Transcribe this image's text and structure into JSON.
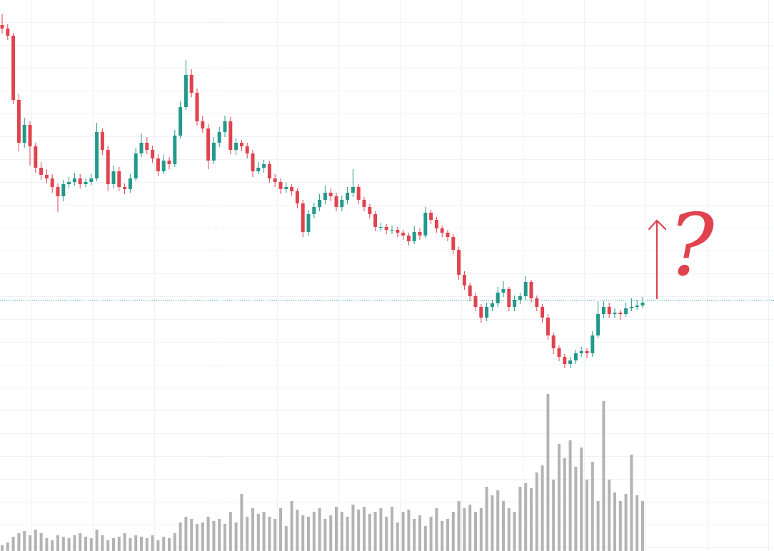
{
  "chart_data": {
    "type": "candlestick",
    "annotation": "?",
    "annotation_color": "#e0434f",
    "up_color": "#22998a",
    "down_color": "#e0434f",
    "volume_color": "#b3b3b3",
    "price_line": 351,
    "price_line_color": "#22998a",
    "ylim": [
      0,
      772
    ],
    "volume_ylim": [
      0,
      240
    ],
    "open": [
      737,
      732,
      722,
      632,
      572,
      597,
      567,
      537,
      527,
      522,
      510,
      497,
      514,
      517,
      522,
      514,
      517,
      522,
      587,
      562,
      514,
      532,
      510,
      507,
      522,
      557,
      572,
      562,
      550,
      532,
      547,
      542,
      582,
      622,
      667,
      642,
      602,
      592,
      547,
      572,
      587,
      602,
      562,
      572,
      567,
      557,
      532,
      537,
      542,
      522,
      517,
      507,
      510,
      504,
      487,
      447,
      472,
      482,
      492,
      502,
      497,
      482,
      492,
      502,
      510,
      492,
      482,
      472,
      454,
      454,
      450,
      450,
      446,
      442,
      434,
      447,
      442,
      474,
      464,
      452,
      446,
      440,
      422,
      387,
      372,
      357,
      342,
      327,
      342,
      347,
      362,
      367,
      342,
      352,
      357,
      377,
      354,
      342,
      327,
      302,
      284,
      272,
      262,
      267,
      277,
      280,
      277,
      302,
      332,
      342,
      332,
      334,
      332,
      340,
      342,
      344
    ],
    "high": [
      752,
      738,
      726,
      640,
      607,
      602,
      572,
      545,
      535,
      528,
      515,
      520,
      524,
      530,
      528,
      522,
      528,
      600,
      592,
      568,
      540,
      538,
      515,
      528,
      565,
      585,
      580,
      568,
      556,
      555,
      552,
      590,
      630,
      688,
      675,
      648,
      610,
      598,
      580,
      594,
      610,
      608,
      578,
      576,
      572,
      562,
      545,
      548,
      546,
      528,
      522,
      516,
      514,
      508,
      492,
      478,
      488,
      500,
      512,
      508,
      502,
      498,
      510,
      535,
      514,
      496,
      486,
      476,
      460,
      458,
      456,
      454,
      450,
      446,
      455,
      452,
      482,
      478,
      468,
      456,
      450,
      444,
      426,
      392,
      376,
      362,
      346,
      348,
      352,
      370,
      378,
      370,
      358,
      362,
      385,
      380,
      358,
      346,
      332,
      306,
      288,
      276,
      272,
      282,
      286,
      284,
      308,
      350,
      350,
      348,
      340,
      338,
      348,
      354,
      352,
      356
    ],
    "low": [
      725,
      716,
      626,
      560,
      565,
      540,
      530,
      520,
      515,
      502,
      475,
      490,
      508,
      512,
      508,
      510,
      512,
      518,
      555,
      505,
      508,
      504,
      500,
      502,
      518,
      552,
      556,
      544,
      525,
      528,
      535,
      538,
      578,
      618,
      636,
      596,
      586,
      535,
      542,
      566,
      580,
      556,
      555,
      560,
      550,
      524,
      528,
      530,
      516,
      510,
      500,
      502,
      498,
      480,
      440,
      442,
      466,
      476,
      486,
      490,
      476,
      476,
      486,
      496,
      486,
      476,
      466,
      448,
      448,
      444,
      444,
      440,
      436,
      428,
      430,
      436,
      438,
      458,
      446,
      440,
      434,
      416,
      380,
      366,
      350,
      336,
      320,
      322,
      336,
      342,
      356,
      336,
      336,
      346,
      352,
      348,
      336,
      320,
      296,
      276,
      266,
      256,
      256,
      262,
      272,
      270,
      272,
      298,
      326,
      326,
      326,
      324,
      328,
      336,
      338,
      340
    ],
    "close": [
      732,
      722,
      632,
      572,
      597,
      567,
      537,
      527,
      522,
      510,
      497,
      514,
      517,
      522,
      514,
      517,
      522,
      587,
      562,
      514,
      532,
      510,
      507,
      522,
      557,
      572,
      562,
      550,
      532,
      547,
      542,
      582,
      622,
      667,
      642,
      602,
      592,
      547,
      572,
      587,
      602,
      562,
      572,
      567,
      557,
      532,
      537,
      542,
      522,
      517,
      507,
      510,
      504,
      487,
      447,
      472,
      482,
      492,
      502,
      497,
      482,
      492,
      502,
      510,
      492,
      482,
      472,
      454,
      454,
      450,
      450,
      446,
      442,
      434,
      447,
      442,
      474,
      464,
      452,
      446,
      440,
      422,
      387,
      372,
      357,
      342,
      327,
      342,
      347,
      362,
      367,
      342,
      352,
      357,
      377,
      354,
      342,
      327,
      302,
      284,
      272,
      262,
      267,
      277,
      280,
      277,
      302,
      332,
      342,
      332,
      334,
      332,
      340,
      342,
      344,
      348
    ],
    "volume": [
      8,
      12,
      20,
      25,
      28,
      22,
      30,
      25,
      18,
      15,
      22,
      20,
      18,
      22,
      25,
      20,
      18,
      30,
      22,
      15,
      18,
      20,
      25,
      18,
      22,
      20,
      18,
      22,
      15,
      20,
      18,
      25,
      40,
      48,
      45,
      38,
      40,
      48,
      42,
      45,
      38,
      55,
      40,
      80,
      48,
      60,
      52,
      55,
      48,
      45,
      60,
      35,
      70,
      58,
      50,
      48,
      55,
      60,
      45,
      50,
      62,
      55,
      48,
      65,
      58,
      62,
      52,
      55,
      60,
      48,
      62,
      40,
      55,
      58,
      45,
      50,
      35,
      48,
      60,
      42,
      45,
      55,
      70,
      60,
      65,
      55,
      60,
      90,
      78,
      85,
      70,
      60,
      55,
      90,
      95,
      88,
      110,
      120,
      220,
      100,
      150,
      130,
      155,
      118,
      145,
      100,
      125,
      70,
      210,
      100,
      82,
      70,
      80,
      135,
      78,
      70
    ]
  }
}
